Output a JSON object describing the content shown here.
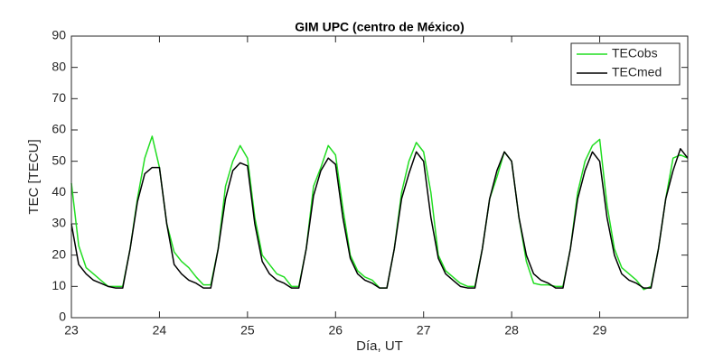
{
  "chart_data": {
    "type": "line",
    "title": "GIM UPC (centro de México)",
    "xlabel": "Día, UT",
    "ylabel": "TEC [TECU]",
    "x": [
      23,
      23.083,
      23.167,
      23.25,
      23.333,
      23.417,
      23.5,
      23.583,
      23.667,
      23.75,
      23.833,
      23.917,
      24,
      24.083,
      24.167,
      24.25,
      24.333,
      24.417,
      24.5,
      24.583,
      24.667,
      24.75,
      24.833,
      24.917,
      25,
      25.083,
      25.167,
      25.25,
      25.333,
      25.417,
      25.5,
      25.583,
      25.667,
      25.75,
      25.833,
      25.917,
      26,
      26.083,
      26.167,
      26.25,
      26.333,
      26.417,
      26.5,
      26.583,
      26.667,
      26.75,
      26.833,
      26.917,
      27,
      27.083,
      27.167,
      27.25,
      27.333,
      27.417,
      27.5,
      27.583,
      27.667,
      27.75,
      27.833,
      27.917,
      28,
      28.083,
      28.167,
      28.25,
      28.333,
      28.417,
      28.5,
      28.583,
      28.667,
      28.75,
      28.833,
      28.917,
      29,
      29.083,
      29.167,
      29.25,
      29.333,
      29.417,
      29.5,
      29.583,
      29.667,
      29.75,
      29.833,
      29.917,
      30
    ],
    "series": [
      {
        "name": "TECobs",
        "color": "#22dd22",
        "values": [
          43,
          23,
          16,
          14,
          12,
          10,
          10,
          10,
          22,
          38,
          51,
          58,
          48,
          30,
          21,
          18,
          16,
          13,
          10.5,
          10.5,
          22,
          42,
          50,
          55,
          51,
          32,
          20,
          17,
          14,
          13,
          10,
          10,
          22,
          42,
          48,
          55,
          52,
          35,
          20,
          15,
          13,
          12,
          9.5,
          9.5,
          22,
          40,
          50,
          56,
          53,
          40,
          20,
          15,
          13,
          11,
          10,
          10,
          22,
          38,
          45,
          53,
          50,
          32,
          18,
          11,
          10.5,
          10.5,
          10,
          10,
          22,
          40,
          50,
          55,
          57,
          36,
          22,
          16,
          14,
          12,
          9,
          10,
          22,
          38,
          51,
          52,
          51
        ]
      },
      {
        "name": "TECmed",
        "color": "#000000",
        "values": [
          30,
          17,
          14,
          12,
          11,
          10,
          9.5,
          9.5,
          22,
          37,
          46,
          48,
          48,
          30,
          17,
          14,
          12,
          11,
          9.5,
          9.5,
          22,
          38,
          47,
          49.5,
          48.5,
          30,
          18,
          14,
          12,
          11,
          9.5,
          9.5,
          22,
          39,
          47,
          51,
          49,
          32,
          19,
          14,
          12,
          11,
          9.5,
          9.5,
          22,
          38,
          46,
          53,
          50,
          32,
          19,
          14,
          12,
          10,
          9.5,
          9.5,
          22,
          38,
          47,
          53,
          50,
          32,
          20,
          14,
          12,
          11,
          9.5,
          9.5,
          22,
          38,
          47,
          53,
          50,
          32,
          20,
          14,
          12,
          11,
          9.5,
          9.5,
          22,
          38,
          47,
          54,
          51
        ]
      }
    ],
    "xlim": [
      23,
      30
    ],
    "xticks": [
      23,
      24,
      25,
      26,
      27,
      28,
      29
    ],
    "ylim": [
      0,
      90
    ],
    "yticks": [
      0,
      10,
      20,
      30,
      40,
      50,
      60,
      70,
      80,
      90
    ],
    "grid": false,
    "legend": "northeast"
  }
}
